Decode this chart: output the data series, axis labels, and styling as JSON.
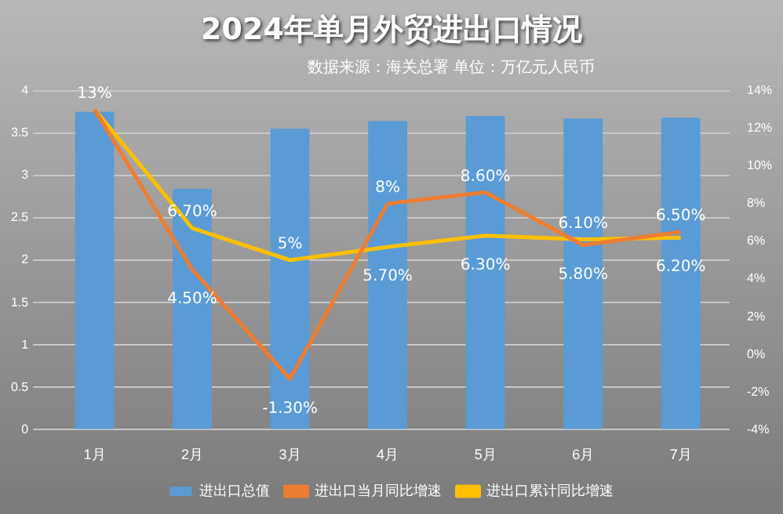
{
  "chart_data": {
    "type": "bar",
    "title": "2024年单月外贸进出口情况",
    "subtitle": "数据来源：海关总署 单位：万亿元人民币",
    "categories": [
      "1月",
      "2月",
      "3月",
      "4月",
      "5月",
      "6月",
      "7月"
    ],
    "series": [
      {
        "name": "进出口总值",
        "color": "#5b9bd5",
        "values": [
          3.75,
          2.84,
          3.55,
          3.64,
          3.7,
          3.67,
          3.68
        ]
      },
      {
        "name": "进出口当月同比增速",
        "type": "line",
        "axis": "y2",
        "color": "#ed7d31",
        "values": [
          13,
          4.5,
          -1.3,
          8,
          8.6,
          5.8,
          6.5
        ],
        "value_labels": [
          "13%",
          "4.50%",
          "-1.30%",
          "8%",
          "8.60%",
          "5.80%",
          "6.50%"
        ]
      },
      {
        "name": "进出口累计同比增速",
        "type": "line",
        "axis": "y2",
        "color": "#ffc000",
        "values": [
          13,
          6.7,
          5,
          5.7,
          6.3,
          6.1,
          6.2
        ],
        "value_labels": [
          null,
          "6.70%",
          "5%",
          "5.70%",
          "6.30%",
          "6.10%",
          "6.20%"
        ]
      }
    ],
    "ylim": [
      0,
      4
    ],
    "yticks": [
      0,
      0.5,
      1,
      1.5,
      2,
      2.5,
      3,
      3.5,
      4
    ],
    "y2lim": [
      -4,
      14
    ],
    "y2ticks": [
      {
        "value": -4,
        "label": "-4%"
      },
      {
        "value": -2,
        "label": "-2%"
      },
      {
        "value": 0,
        "label": "0%"
      },
      {
        "value": 2,
        "label": "2%"
      },
      {
        "value": 4,
        "label": "4%"
      },
      {
        "value": 6,
        "label": "6%"
      },
      {
        "value": 8,
        "label": "8%"
      },
      {
        "value": 10,
        "label": "10%"
      },
      {
        "value": 12,
        "label": "12%"
      },
      {
        "value": 14,
        "label": "14%"
      }
    ],
    "grid": "y",
    "legend": "bottom",
    "marker": "none",
    "line_style": "solid"
  }
}
